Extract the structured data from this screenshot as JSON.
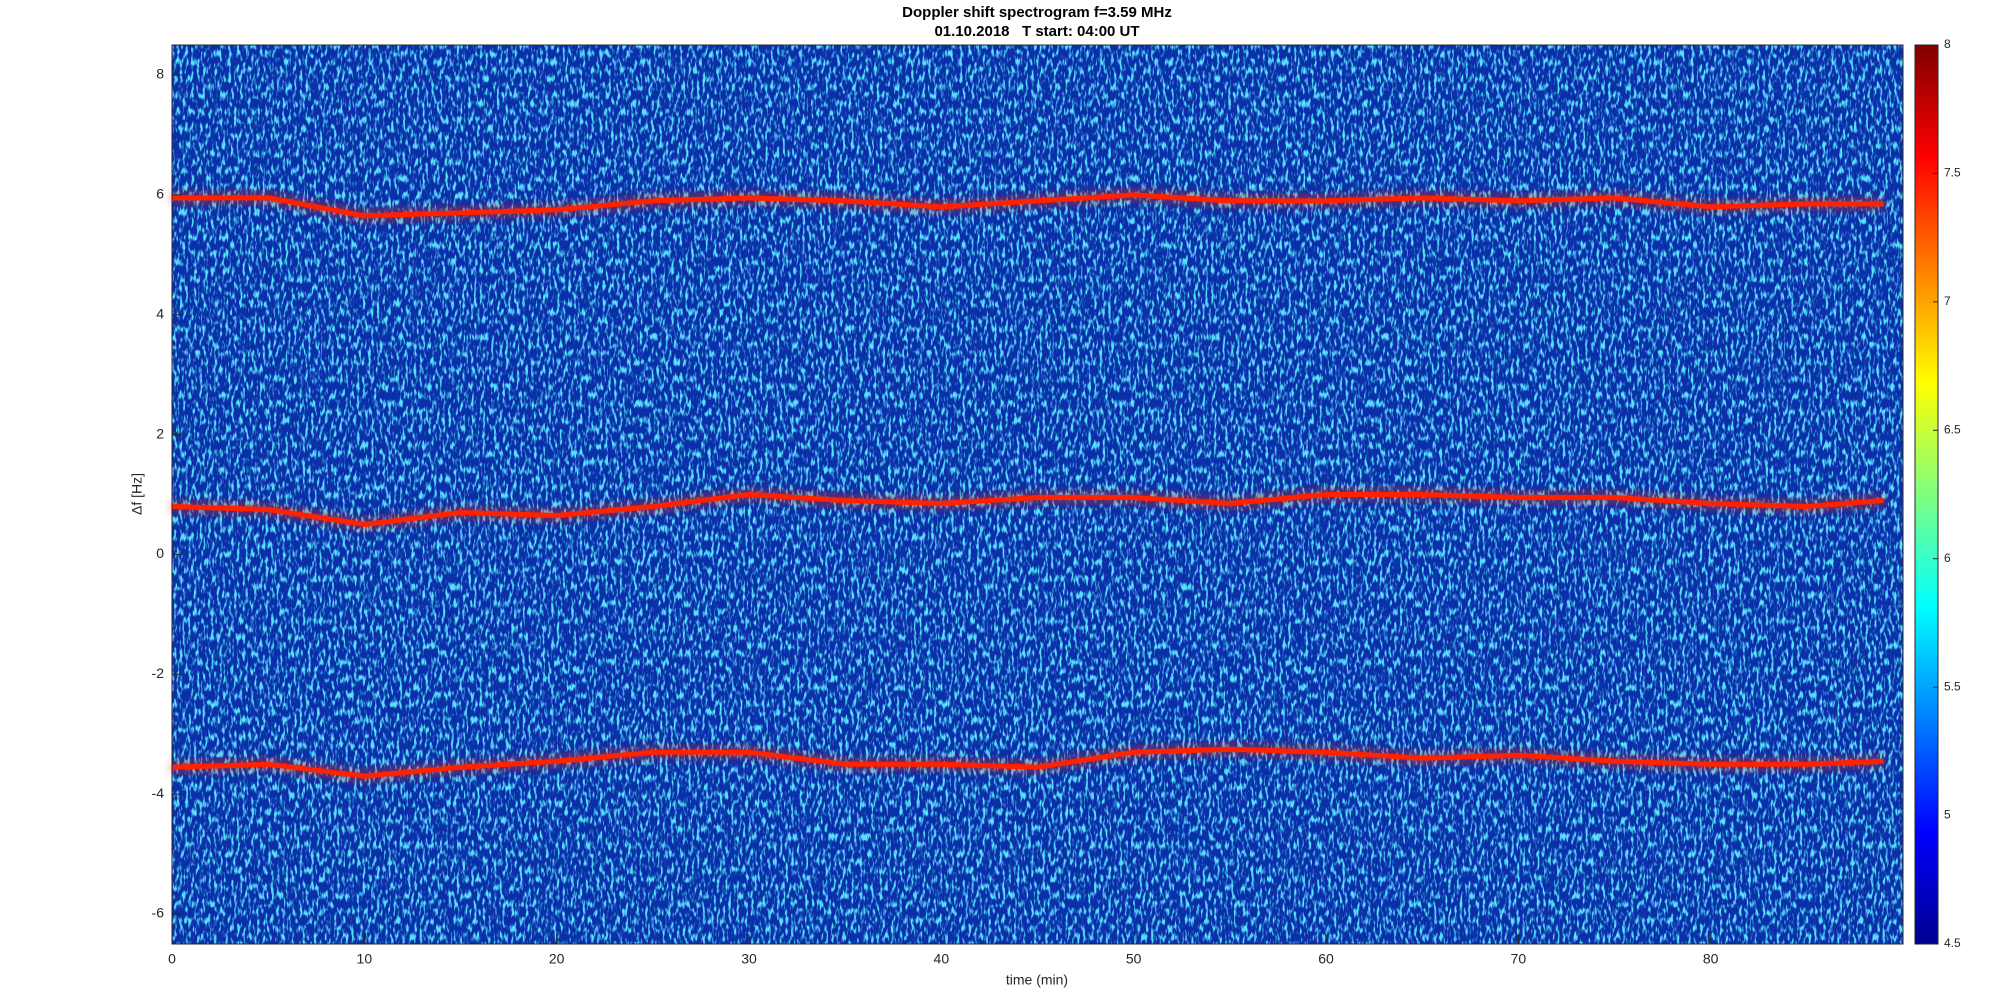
{
  "chart_data": {
    "type": "spectrogram",
    "title": "Doppler shift spectrogram f=3.59 MHz",
    "subtitle": "01.10.2018   T start: 04:00 UT",
    "xlabel": "time (min)",
    "ylabel": "Δf [Hz]",
    "x": [
      0,
      5,
      10,
      15,
      20,
      25,
      30,
      35,
      40,
      45,
      50,
      55,
      60,
      65,
      70,
      75,
      80,
      85,
      89
    ],
    "series": [
      {
        "color": "#ff2000",
        "values": [
          5.95,
          5.95,
          5.65,
          5.7,
          5.75,
          5.9,
          5.95,
          5.9,
          5.8,
          5.9,
          6.0,
          5.9,
          5.9,
          5.95,
          5.9,
          5.95,
          5.8,
          5.85,
          5.85
        ]
      },
      {
        "color": "#ff2000",
        "values": [
          0.8,
          0.75,
          0.5,
          0.7,
          0.65,
          0.8,
          1.0,
          0.9,
          0.85,
          0.95,
          0.95,
          0.85,
          1.0,
          1.0,
          0.95,
          0.95,
          0.85,
          0.8,
          0.9
        ]
      },
      {
        "color": "#ff2000",
        "values": [
          -3.55,
          -3.5,
          -3.7,
          -3.55,
          -3.45,
          -3.3,
          -3.3,
          -3.5,
          -3.5,
          -3.55,
          -3.3,
          -3.25,
          -3.3,
          -3.4,
          -3.35,
          -3.45,
          -3.5,
          -3.5,
          -3.45
        ]
      }
    ],
    "xlim": [
      0,
      90
    ],
    "xticks": [
      0,
      10,
      20,
      30,
      40,
      50,
      60,
      70,
      80
    ],
    "ylim": [
      -6.5,
      8.5
    ],
    "yticks": [
      -6,
      -4,
      -2,
      0,
      2,
      4,
      6,
      8
    ],
    "colormap": "jet",
    "clim": [
      4.5,
      8
    ],
    "cticks": [
      4.5,
      5,
      5.5,
      6,
      6.5,
      7,
      7.5,
      8
    ]
  }
}
